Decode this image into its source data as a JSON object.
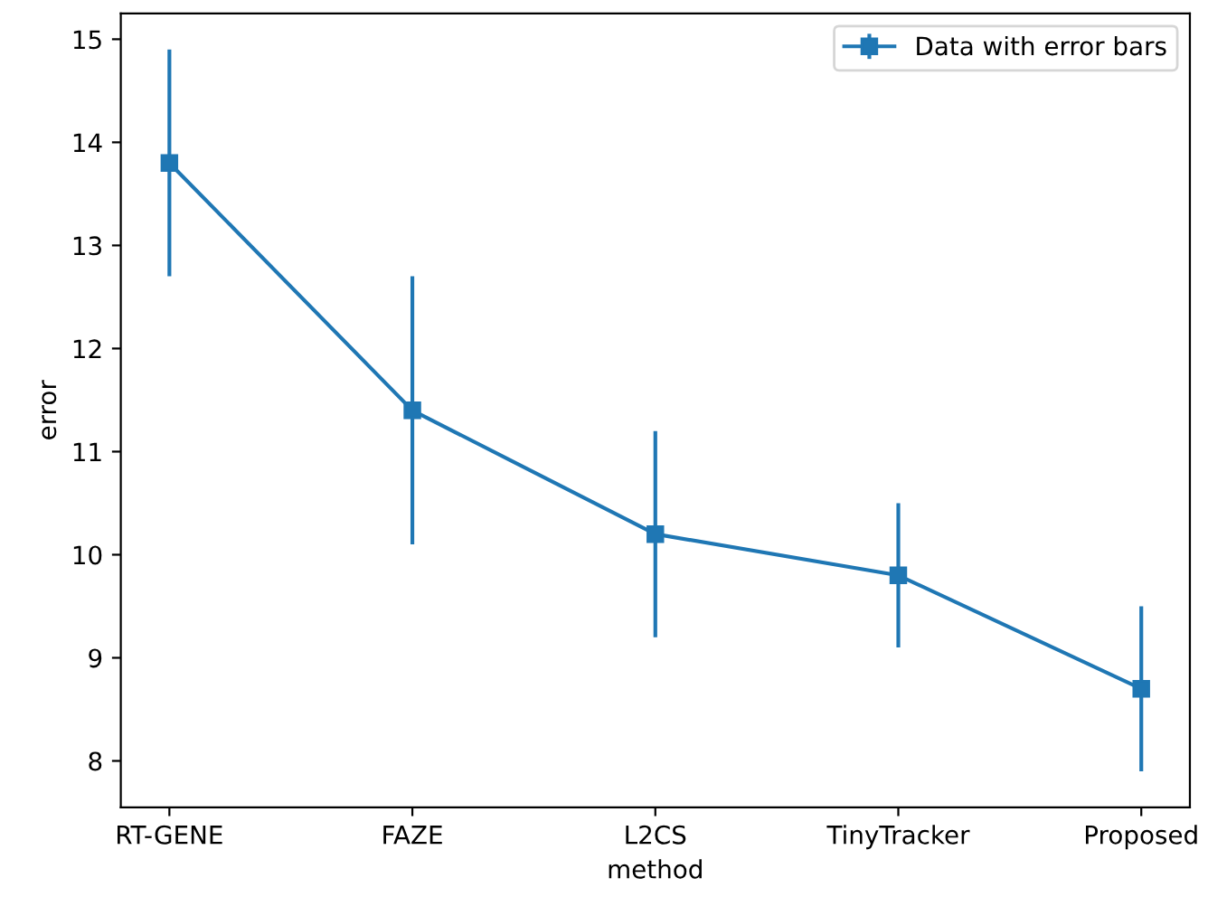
{
  "chart_data": {
    "type": "line",
    "xlabel": "method",
    "ylabel": "error",
    "categories": [
      "RT-GENE",
      "FAZE",
      "L2CS",
      "TinyTracker",
      "Proposed"
    ],
    "series": [
      {
        "name": "Data with error bars",
        "color": "#1f77b4",
        "values": [
          13.8,
          11.4,
          10.2,
          9.8,
          8.7
        ],
        "errors": [
          1.1,
          1.3,
          1.0,
          0.7,
          0.8
        ]
      }
    ],
    "ylim": [
      7.55,
      15.25
    ],
    "yticks": [
      8,
      9,
      10,
      11,
      12,
      13,
      14,
      15
    ],
    "marker": "square",
    "line_style": "solid",
    "legend": "top right",
    "grid": false
  }
}
